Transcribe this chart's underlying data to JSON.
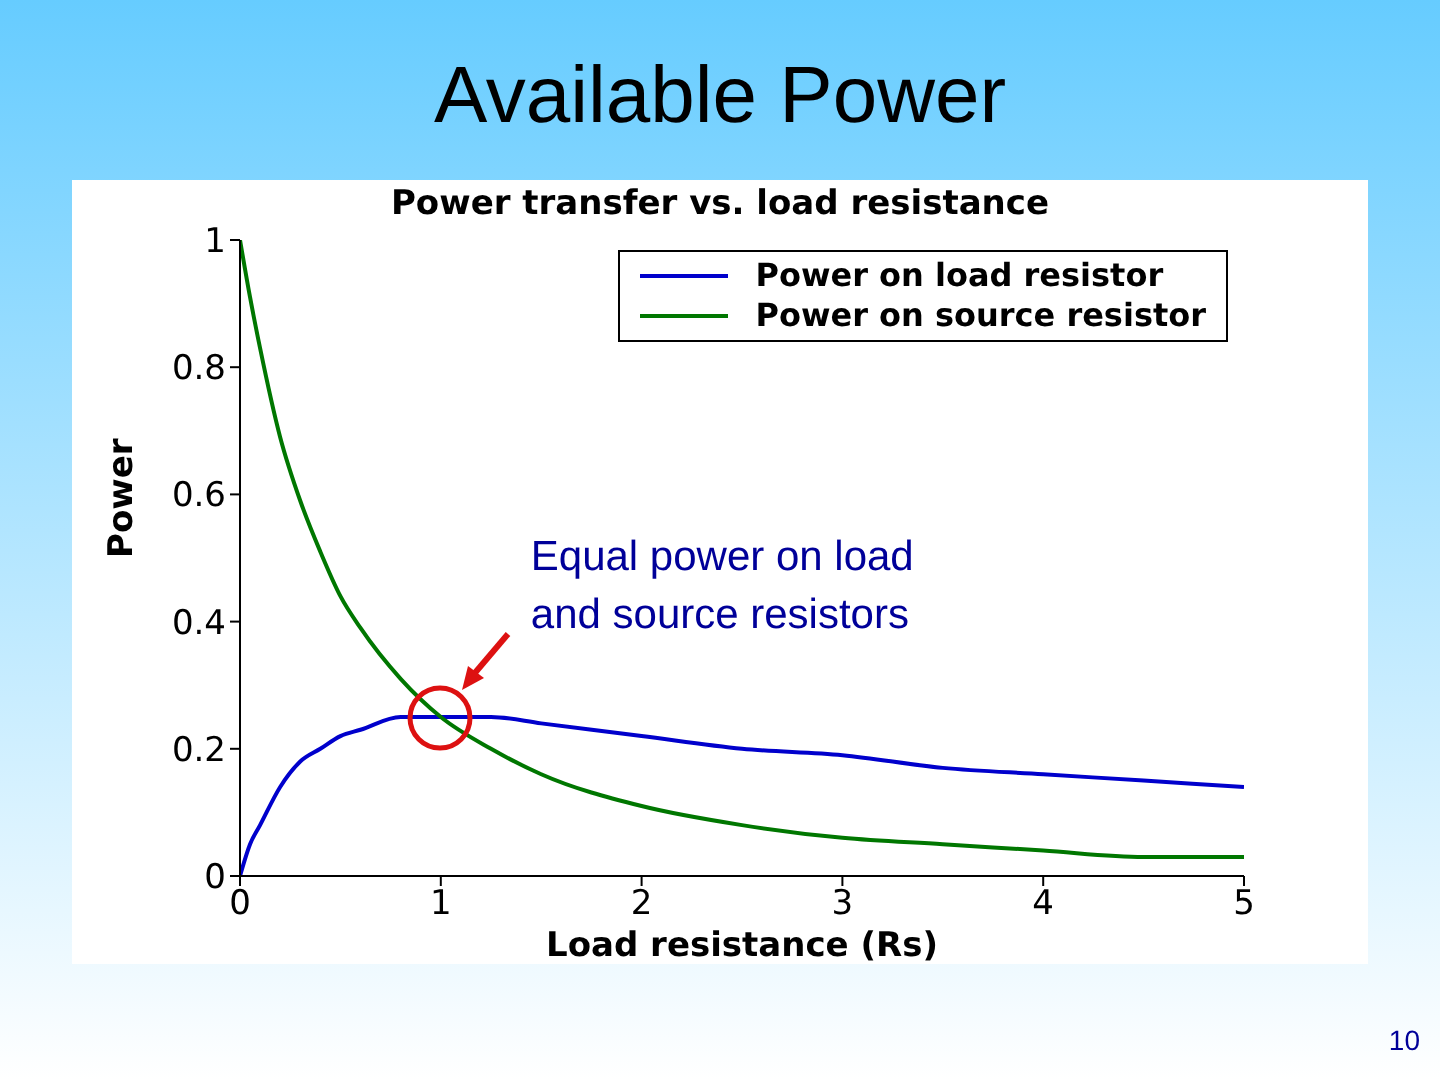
{
  "chart_data": {
    "type": "line",
    "title": "Available Power",
    "subtitle": "Power transfer vs. load resistance",
    "xlabel": "Load resistance (Rs)",
    "ylabel": "Power",
    "x": [
      0,
      0.05,
      0.1,
      0.2,
      0.3,
      0.4,
      0.5,
      0.6,
      0.8,
      1,
      1.25,
      1.5,
      2,
      2.5,
      3,
      3.5,
      4,
      4.5,
      5
    ],
    "series": [
      {
        "name": "Power on load resistor",
        "color": "#0000cc",
        "values": [
          0,
          0.05,
          0.08,
          0.14,
          0.18,
          0.2,
          0.22,
          0.23,
          0.25,
          0.25,
          0.25,
          0.24,
          0.22,
          0.2,
          0.19,
          0.17,
          0.16,
          0.15,
          0.14
        ]
      },
      {
        "name": "Power on source resistor",
        "color": "#007700",
        "values": [
          1,
          0.91,
          0.83,
          0.69,
          0.59,
          0.51,
          0.44,
          0.39,
          0.31,
          0.25,
          0.2,
          0.16,
          0.11,
          0.08,
          0.06,
          0.05,
          0.04,
          0.03,
          0.03
        ]
      }
    ],
    "xlim": [
      0,
      5
    ],
    "xticks": [
      0,
      1,
      2,
      3,
      4,
      5
    ],
    "ylim": [
      0,
      1
    ],
    "yticks": [
      0,
      0.2,
      0.4,
      0.6,
      0.8,
      1
    ],
    "legend": "top right",
    "marker": "none",
    "line_style": "solid",
    "annotations": [
      {
        "text": "Equal power on load and source resistors",
        "x": 1,
        "y": 0.25
      },
      "10"
    ]
  }
}
